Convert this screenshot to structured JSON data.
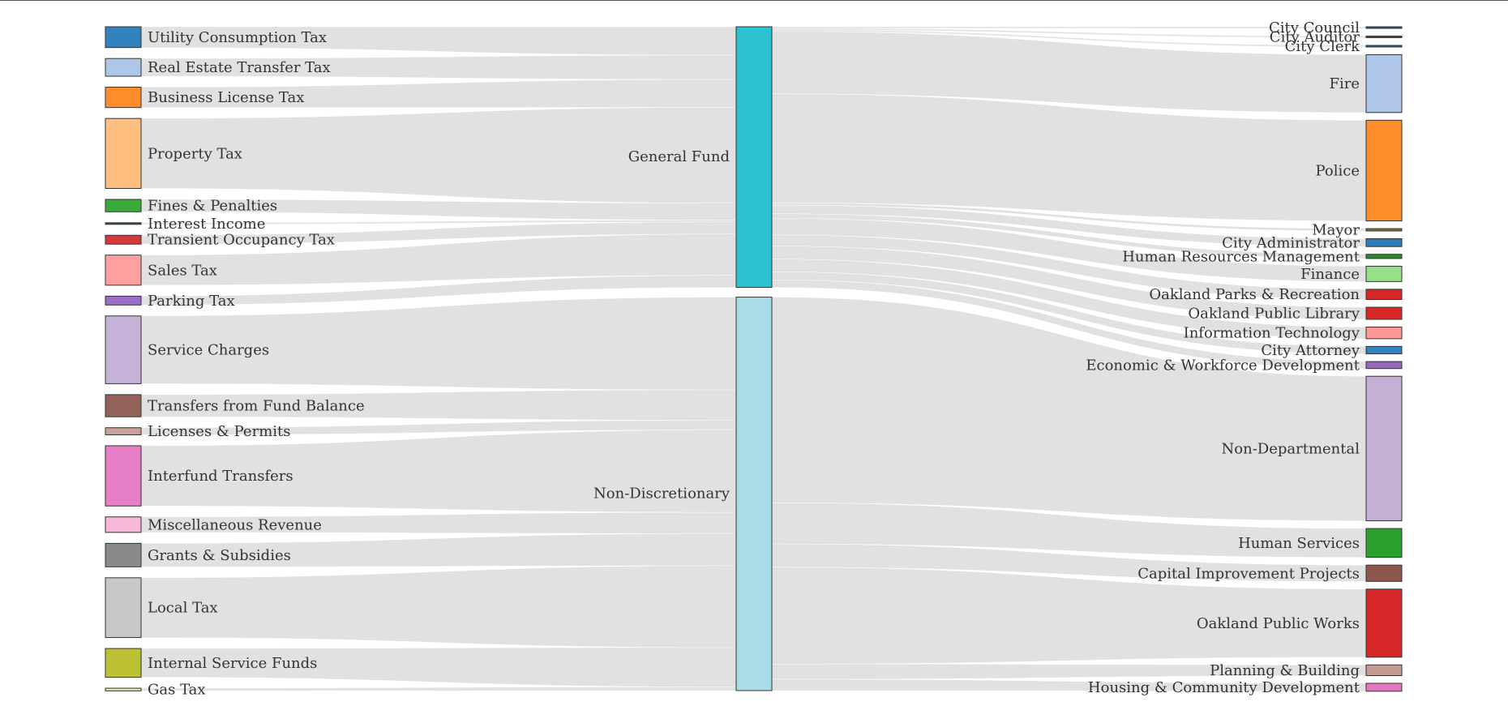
{
  "chart_data": {
    "type": "sankey",
    "title": "",
    "columns": {
      "sources": [
        {
          "name": "Utility Consumption Tax",
          "color": "#3182bd",
          "value": 47
        },
        {
          "name": "Real Estate Transfer Tax",
          "color": "#aec7e8",
          "value": 40
        },
        {
          "name": "Business License Tax",
          "color": "#ff8c2a",
          "value": 46
        },
        {
          "name": "Property Tax",
          "color": "#ffbf80",
          "value": 158
        },
        {
          "name": "Fines & Penalties",
          "color": "#3aaa3a",
          "value": 28
        },
        {
          "name": "Interest Income",
          "color": "#1f6e1f",
          "value": 3
        },
        {
          "name": "Transient Occupancy Tax",
          "color": "#d8383a",
          "value": 20
        },
        {
          "name": "Sales Tax",
          "color": "#ffa0a0",
          "value": 68
        },
        {
          "name": "Parking Tax",
          "color": "#9b6fc8",
          "value": 20
        },
        {
          "name": "Service Charges",
          "color": "#c6b2d8",
          "value": 153
        },
        {
          "name": "Transfers from Fund Balance",
          "color": "#936258",
          "value": 50
        },
        {
          "name": "Licenses & Permits",
          "color": "#c8a19b",
          "value": 16
        },
        {
          "name": "Interfund Transfers",
          "color": "#e67fc6",
          "value": 136
        },
        {
          "name": "Miscellaneous Revenue",
          "color": "#f6b8d6",
          "value": 35
        },
        {
          "name": "Grants & Subsidies",
          "color": "#8a8a8a",
          "value": 53
        },
        {
          "name": "Local Tax",
          "color": "#c8c8c8",
          "value": 135
        },
        {
          "name": "Internal Service Funds",
          "color": "#bdc234",
          "value": 65
        },
        {
          "name": "Gas Tax",
          "color": "#e7e9a0",
          "value": 6
        }
      ],
      "funds": [
        {
          "name": "General Fund",
          "color": "#2bc3d2"
        },
        {
          "name": "Non-Discretionary",
          "color": "#a8dde8"
        }
      ],
      "departments": [
        {
          "name": "City Council",
          "color": "#1f5f9f",
          "value": 3
        },
        {
          "name": "City Auditor",
          "color": "#1f5f9f",
          "value": 3
        },
        {
          "name": "City Clerk",
          "color": "#1f5f9f",
          "value": 3
        },
        {
          "name": "Fire",
          "color": "#aec7e8",
          "value": 124
        },
        {
          "name": "Police",
          "color": "#ff8c2a",
          "value": 216
        },
        {
          "name": "Mayor",
          "color": "#8c6d31",
          "value": 5
        },
        {
          "name": "City Administrator",
          "color": "#2f7ab8",
          "value": 17
        },
        {
          "name": "Human Resources Management",
          "color": "#2a8a2a",
          "value": 9
        },
        {
          "name": "Finance",
          "color": "#98df8a",
          "value": 33
        },
        {
          "name": "Oakland Parks & Recreation",
          "color": "#d62728",
          "value": 22
        },
        {
          "name": "Oakland Public Library",
          "color": "#d62728",
          "value": 26
        },
        {
          "name": "Information Technology",
          "color": "#ff9896",
          "value": 25
        },
        {
          "name": "City Attorney",
          "color": "#3182bd",
          "value": 16
        },
        {
          "name": "Economic & Workforce Development",
          "color": "#9467bd",
          "value": 15
        },
        {
          "name": "Non-Departmental",
          "color": "#c5b0d5",
          "value": 310
        },
        {
          "name": "Human Services",
          "color": "#2ca02c",
          "value": 62
        },
        {
          "name": "Capital Improvement Projects",
          "color": "#8c564b",
          "value": 35
        },
        {
          "name": "Oakland Public Works",
          "color": "#d62728",
          "value": 146
        },
        {
          "name": "Planning & Building",
          "color": "#c49c94",
          "value": 23
        },
        {
          "name": "Housing & Community Development",
          "color": "#e377c2",
          "value": 17
        }
      ]
    },
    "general_fund_sources": [
      "Utility Consumption Tax",
      "Real Estate Transfer Tax",
      "Business License Tax",
      "Property Tax",
      "Fines & Penalties",
      "Interest Income",
      "Transient Occupancy Tax",
      "Sales Tax",
      "Parking Tax"
    ],
    "general_fund_departments": [
      "City Council",
      "City Auditor",
      "City Clerk",
      "Fire",
      "Police",
      "Mayor",
      "City Administrator",
      "Human Resources Management",
      "Finance",
      "Oakland Parks & Recreation",
      "Oakland Public Library",
      "Information Technology",
      "City Attorney",
      "Economic & Workforce Development"
    ],
    "legend": "none",
    "grid": false
  }
}
